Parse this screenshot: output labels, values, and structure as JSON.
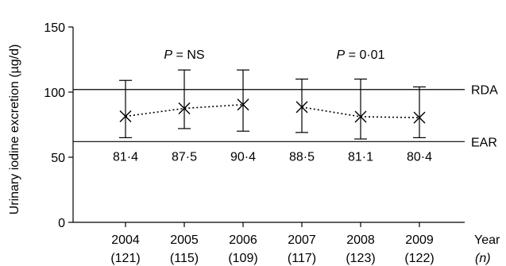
{
  "chart_data": {
    "type": "scatter",
    "title": "",
    "xlabel": "Year",
    "xlabel_suffix": "(n)",
    "ylabel": "Urinary iodine excretion (µg/d)",
    "ylim": [
      0,
      150
    ],
    "yticks": [
      0,
      50,
      100,
      150
    ],
    "grid": false,
    "legend": "none",
    "x": [
      "2004",
      "2005",
      "2006",
      "2007",
      "2008",
      "2009"
    ],
    "n_labels": [
      "(121)",
      "(115)",
      "(109)",
      "(117)",
      "(123)",
      "(122)"
    ],
    "series": [
      {
        "values": [
          81.4,
          87.5,
          90.4,
          88.5,
          81.1,
          80.4
        ],
        "error_high": [
          109,
          117,
          117,
          110,
          110,
          104
        ],
        "error_low": [
          65,
          72,
          70,
          69,
          64,
          65
        ],
        "marker": "x",
        "color": "#000000"
      }
    ],
    "mean_labels": [
      "81·4",
      "87·5",
      "90·4",
      "88·5",
      "81·1",
      "80·4"
    ],
    "reference_lines": [
      {
        "label": "RDA",
        "value": 102
      },
      {
        "label": "EAR",
        "value": 62
      }
    ],
    "trend_segments": [
      {
        "from_index": 0,
        "to_index": 2,
        "annotation_italic": "P",
        "annotation_text": " = NS"
      },
      {
        "from_index": 3,
        "to_index": 5,
        "annotation_italic": "P",
        "annotation_text": " = 0·01"
      }
    ]
  }
}
